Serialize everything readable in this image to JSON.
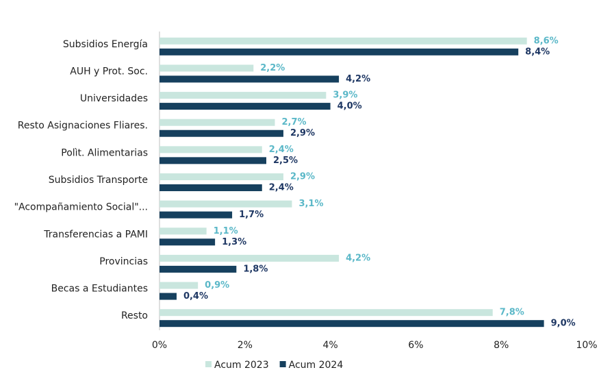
{
  "chart_data": {
    "type": "bar",
    "orientation": "horizontal",
    "categories": [
      "Subsidios Energía",
      "AUH y Prot. Soc.",
      "Universidades",
      "Resto Asignaciones Fliares.",
      "Polìt. Alimentarias",
      "Subsidios Transporte",
      "\"Acompañamiento Social\"...",
      "Transferencias a PAMI",
      "Provincias",
      "Becas a Estudiantes",
      "Resto"
    ],
    "series": [
      {
        "name": "Acum 2023",
        "color": "#c9e6de",
        "label_color": "#5bb8c8",
        "values": [
          8.6,
          2.2,
          3.9,
          2.7,
          2.4,
          2.9,
          3.1,
          1.1,
          4.2,
          0.9,
          7.8
        ],
        "value_labels": [
          "8,6%",
          "2,2%",
          "3,9%",
          "2,7%",
          "2,4%",
          "2,9%",
          "3,1%",
          "1,1%",
          "4,2%",
          "0,9%",
          "7,8%"
        ]
      },
      {
        "name": "Acum 2024",
        "color": "#16405e",
        "label_color": "#1f3864",
        "values": [
          8.4,
          4.2,
          4.0,
          2.9,
          2.5,
          2.4,
          1.7,
          1.3,
          1.8,
          0.4,
          9.0
        ],
        "value_labels": [
          "8,4%",
          "4,2%",
          "4,0%",
          "2,9%",
          "2,5%",
          "2,4%",
          "1,7%",
          "1,3%",
          "1,8%",
          "0,4%",
          "9,0%"
        ]
      }
    ],
    "xlim": [
      0,
      10
    ],
    "xticks": [
      {
        "value": 0,
        "label": "0%"
      },
      {
        "value": 2,
        "label": "2%"
      },
      {
        "value": 4,
        "label": "4%"
      },
      {
        "value": 6,
        "label": "6%"
      },
      {
        "value": 8,
        "label": "8%"
      },
      {
        "value": 10,
        "label": "10%"
      }
    ],
    "legend": "bottom"
  }
}
